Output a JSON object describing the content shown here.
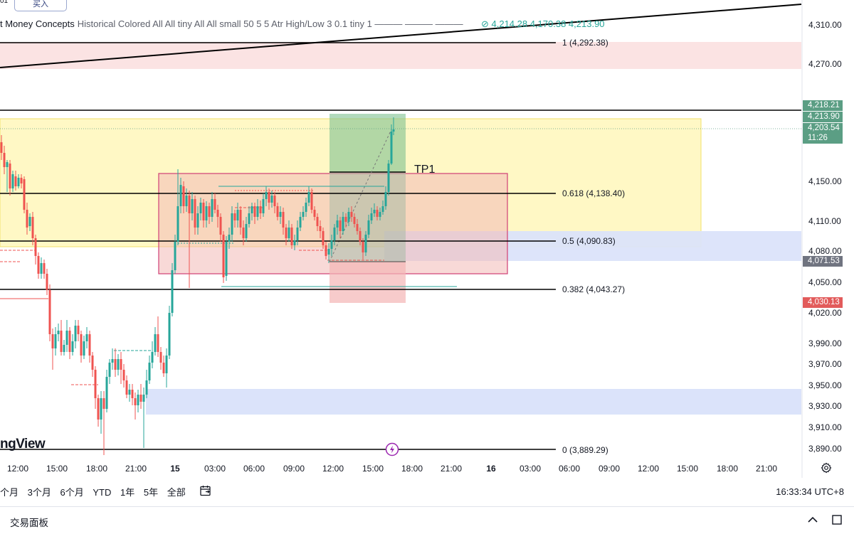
{
  "header": {
    "corner_text": "01",
    "buy_button_label": "买入",
    "indicator_name": "t Money Concepts",
    "indicator_params": "Historical Colored All All tiny All All small 50 5 5 Atr High/Low 3 0.1 tiny 1 ——— ——— ———",
    "indicator_values": "⊘ 4,214.28  4,170.38  4,213.90"
  },
  "watermark": "ngView",
  "price_axis": {
    "labels": [
      "4,310.00",
      "4,270.00",
      "4,150.00",
      "4,110.00",
      "4,080.00",
      "4,050.00",
      "4,020.00",
      "3,990.00",
      "3,970.00",
      "3,950.00",
      "3,930.00",
      "3,910.00",
      "3,890.00"
    ],
    "tags": [
      {
        "text": "4,218.21",
        "bg": "#5b9e84"
      },
      {
        "text": "4,213.90",
        "bg": "#5b9e84"
      },
      {
        "text": "4,203.54",
        "bg": "#5b9e84"
      },
      {
        "text": "11:26",
        "bg": "#5b9e84"
      },
      {
        "text": "4,071.53",
        "bg": "#707480"
      },
      {
        "text": "4,030.13",
        "bg": "#e25b5b"
      }
    ]
  },
  "fib_levels": [
    {
      "label": "1 (4,292.38)"
    },
    {
      "label": "0.618 (4,138.40)"
    },
    {
      "label": "0.5 (4,090.83)"
    },
    {
      "label": "0.382 (4,043.27)"
    },
    {
      "label": "0 (3,889.29)"
    }
  ],
  "annotation_tp1": "TP1",
  "time_axis": [
    "12:00",
    "15:00",
    "18:00",
    "21:00",
    "15",
    "03:00",
    "06:00",
    "09:00",
    "12:00",
    "15:00",
    "18:00",
    "21:00",
    "16",
    "03:00",
    "06:00",
    "09:00",
    "12:00",
    "15:00",
    "18:00",
    "21:00"
  ],
  "range_bar": [
    "个月",
    "3个月",
    "6个月",
    "YTD",
    "1年",
    "5年",
    "全部"
  ],
  "clock": "16:33:34 UTC+8",
  "bottom_panel": {
    "title": "交易面板"
  },
  "colors": {
    "up": "#26a69a",
    "down": "#ef5350",
    "fib_line": "#000000",
    "yellow_zone": "#fff9c4",
    "blue_zone": "#dde4f8",
    "pink_zone": "#f8dede"
  }
}
